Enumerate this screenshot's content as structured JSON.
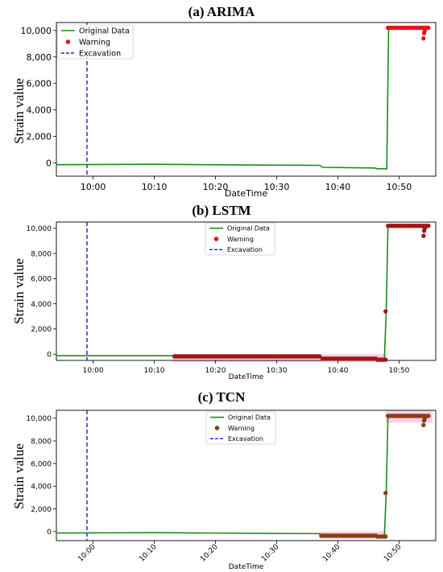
{
  "chart_data": [
    {
      "id": "arima",
      "type": "line",
      "title": "(a) ARIMA",
      "xlabel": "DateTime",
      "ylabel": "Strain value",
      "xlim": [
        "09:54",
        "10:56"
      ],
      "ylim": [
        -1000,
        10600
      ],
      "xticks": [
        "10:00",
        "10:10",
        "10:20",
        "10:30",
        "10:40",
        "10:50"
      ],
      "yticks": [
        0,
        2000,
        4000,
        6000,
        8000,
        10000
      ],
      "ytick_labels": [
        "0",
        "2,000",
        "4,000",
        "6,000",
        "8,000",
        "10,000"
      ],
      "xtick_rotation": 0,
      "legend_position": "top-left",
      "legend": [
        {
          "label": "Original Data",
          "kind": "line",
          "color": "#1a8c1a"
        },
        {
          "label": "Warning",
          "kind": "marker",
          "color": "#e8141c"
        },
        {
          "label": "Excavation",
          "kind": "dashed",
          "color": "#1d1dcc"
        }
      ],
      "excavation_x": "09:59",
      "series": [
        {
          "name": "Original Data",
          "color": "#1a8c1a",
          "x": [
            "09:54",
            "10:10",
            "10:30",
            "10:37",
            "10:37.5",
            "10:46",
            "10:46.5",
            "10:48",
            "10:48.3",
            "10:55"
          ],
          "values": [
            -130,
            -100,
            -170,
            -180,
            -330,
            -380,
            -440,
            -440,
            10200,
            10200
          ]
        }
      ],
      "warnings": {
        "color": "#e8141c",
        "ranges": [
          {
            "from": "10:48.2",
            "to": "10:54.8",
            "y": 10200
          }
        ],
        "points": [
          {
            "x": "10:54",
            "y": 9400
          },
          {
            "x": "10:54.1",
            "y": 9800
          },
          {
            "x": "10:54.2",
            "y": 10000
          }
        ]
      },
      "highlight_bands": []
    },
    {
      "id": "lstm",
      "type": "line",
      "title": "(b) LSTM",
      "xlabel": "DateTime",
      "ylabel": "Strain value",
      "xlim": [
        "09:54",
        "10:56"
      ],
      "ylim": [
        -500,
        10500
      ],
      "xticks": [
        "10:00",
        "10:10",
        "10:20",
        "10:30",
        "10:40",
        "10:50"
      ],
      "yticks": [
        0,
        2000,
        4000,
        6000,
        8000,
        10000
      ],
      "ytick_labels": [
        "0",
        "2,000",
        "4,000",
        "6,000",
        "8,000",
        "10,000"
      ],
      "xtick_rotation": 0,
      "legend_position": "top-center",
      "legend": [
        {
          "label": "Original Data",
          "kind": "line",
          "color": "#1a8c1a"
        },
        {
          "label": "Warning",
          "kind": "marker",
          "color": "#e8141c"
        },
        {
          "label": "Excavation",
          "kind": "dashed",
          "color": "#1d1dcc"
        }
      ],
      "excavation_x": "09:59",
      "series": [
        {
          "name": "Original Data",
          "color": "#1a8c1a",
          "x": [
            "09:54",
            "10:13",
            "10:30",
            "10:37",
            "10:37.5",
            "10:46",
            "10:46.5",
            "10:47.6",
            "10:47.9",
            "10:48.2",
            "10:55"
          ],
          "values": [
            -130,
            -130,
            -180,
            -180,
            -330,
            -380,
            -440,
            -440,
            3400,
            10200,
            10200
          ]
        }
      ],
      "warnings": {
        "color": "#a21616",
        "ranges": [
          {
            "from": "10:13.3",
            "to": "10:37",
            "y": -180
          },
          {
            "from": "10:37.5",
            "to": "10:46.2",
            "y": -360
          },
          {
            "from": "10:46.5",
            "to": "10:47.8",
            "y": -440
          },
          {
            "from": "10:48.2",
            "to": "10:54.8",
            "y": 10200
          }
        ],
        "points": [
          {
            "x": "10:47.8",
            "y": 3400
          },
          {
            "x": "10:54",
            "y": 9400
          },
          {
            "x": "10:54.1",
            "y": 9800
          },
          {
            "x": "10:54.2",
            "y": 10000
          }
        ]
      },
      "highlight_bands": [
        {
          "from": "10:13",
          "to": "10:48",
          "y_from": -650,
          "y_to": 0,
          "color": "#f6c6e0"
        }
      ]
    },
    {
      "id": "tcn",
      "type": "line",
      "title": "(c) TCN",
      "xlabel": "DateTime",
      "ylabel": "Strain value",
      "xlim": [
        "09:54",
        "10:56"
      ],
      "ylim": [
        -800,
        10700
      ],
      "xticks": [
        "10:00",
        "10:10",
        "10:20",
        "10:30",
        "10:40",
        "10:50"
      ],
      "yticks": [
        0,
        2000,
        4000,
        6000,
        8000,
        10000
      ],
      "ytick_labels": [
        "0",
        "2,000",
        "4,000",
        "6,000",
        "8,000",
        "10,000"
      ],
      "xtick_rotation": -45,
      "legend_position": "top-center",
      "legend": [
        {
          "label": "Original Data",
          "kind": "line",
          "color": "#1a8c1a"
        },
        {
          "label": "Warning",
          "kind": "marker",
          "color": "#6e4a13"
        },
        {
          "label": "Excavation",
          "kind": "dashed",
          "color": "#1d1dcc"
        }
      ],
      "excavation_x": "09:59",
      "series": [
        {
          "name": "Original Data",
          "color": "#1a8c1a",
          "x": [
            "09:54",
            "10:10",
            "10:30",
            "10:37",
            "10:37.5",
            "10:46",
            "10:46.5",
            "10:47.6",
            "10:47.9",
            "10:48.2",
            "10:55"
          ],
          "values": [
            -130,
            -100,
            -170,
            -180,
            -330,
            -380,
            -440,
            -440,
            3400,
            10200,
            10200
          ]
        }
      ],
      "warnings": {
        "color": "#8a3d18",
        "ranges": [
          {
            "from": "10:37.3",
            "to": "10:46.2",
            "y": -360
          },
          {
            "from": "10:46.5",
            "to": "10:47.8",
            "y": -440
          },
          {
            "from": "10:48.2",
            "to": "10:54.8",
            "y": 10200
          }
        ],
        "points": [
          {
            "x": "10:47.8",
            "y": 3400
          },
          {
            "x": "10:54",
            "y": 9400
          },
          {
            "x": "10:54.1",
            "y": 9800
          },
          {
            "x": "10:54.2",
            "y": 10000
          }
        ]
      },
      "highlight_bands": [
        {
          "from": "10:37",
          "to": "10:48",
          "y_from": -650,
          "y_to": 0,
          "color": "#f6c6e0"
        },
        {
          "from": "10:47.8",
          "to": "10:55.5",
          "y_from": 9600,
          "y_to": 10700,
          "color": "#f6c6e0"
        }
      ]
    }
  ]
}
